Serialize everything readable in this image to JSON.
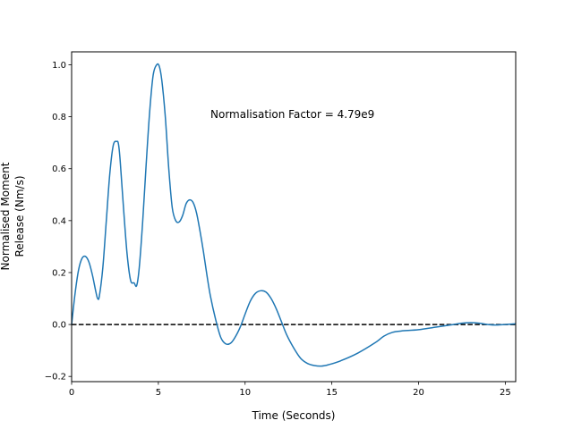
{
  "chart_data": {
    "type": "line",
    "xlabel": "Time (Seconds)",
    "ylabel_lines": [
      "Normalised Moment",
      "Release (Nm/s)"
    ],
    "annotation": "Normalisation Factor = 4.79e9",
    "xlim": [
      0,
      25.6
    ],
    "ylim": [
      -0.22,
      1.05
    ],
    "xticks": [
      0,
      5,
      10,
      15,
      20,
      25
    ],
    "yticks": [
      -0.2,
      0.0,
      0.2,
      0.4,
      0.6,
      0.8,
      1.0
    ],
    "xtick_labels": [
      "0",
      "5",
      "10",
      "15",
      "20",
      "25"
    ],
    "ytick_labels": [
      "−0.2",
      "0.0",
      "0.2",
      "0.4",
      "0.6",
      "0.8",
      "1.0"
    ],
    "grid": false,
    "reference_line": {
      "y": 0.0,
      "style": "dashed",
      "color": "#000000"
    },
    "series": [
      {
        "color": "#1f77b4",
        "x": [
          0,
          0.2,
          0.4,
          0.6,
          0.8,
          1.0,
          1.2,
          1.4,
          1.5,
          1.6,
          1.8,
          2.0,
          2.2,
          2.4,
          2.6,
          2.7,
          2.8,
          3.0,
          3.2,
          3.4,
          3.6,
          3.75,
          3.9,
          4.1,
          4.3,
          4.5,
          4.7,
          4.9,
          5.05,
          5.2,
          5.4,
          5.6,
          5.8,
          6.0,
          6.2,
          6.4,
          6.6,
          6.8,
          7.0,
          7.2,
          7.4,
          7.6,
          7.8,
          8.0,
          8.3,
          8.6,
          8.9,
          9.2,
          9.5,
          9.75,
          10.0,
          10.3,
          10.6,
          10.9,
          11.2,
          11.5,
          11.8,
          12.1,
          12.4,
          12.8,
          13.2,
          13.6,
          14.0,
          14.4,
          14.8,
          15.5,
          16.5,
          17.5,
          18.0,
          18.5,
          19.0,
          20.0,
          21.0,
          22.0,
          22.5,
          23.0,
          23.5,
          24.0,
          24.5,
          25.0,
          25.6
        ],
        "y": [
          0.0,
          0.12,
          0.21,
          0.255,
          0.262,
          0.24,
          0.19,
          0.125,
          0.1,
          0.11,
          0.22,
          0.4,
          0.58,
          0.69,
          0.705,
          0.695,
          0.63,
          0.44,
          0.27,
          0.17,
          0.16,
          0.15,
          0.22,
          0.4,
          0.62,
          0.82,
          0.96,
          1.0,
          0.995,
          0.94,
          0.8,
          0.6,
          0.45,
          0.4,
          0.395,
          0.42,
          0.465,
          0.48,
          0.47,
          0.43,
          0.36,
          0.28,
          0.19,
          0.11,
          0.02,
          -0.05,
          -0.075,
          -0.07,
          -0.04,
          -0.005,
          0.04,
          0.09,
          0.12,
          0.13,
          0.125,
          0.1,
          0.06,
          0.01,
          -0.04,
          -0.09,
          -0.13,
          -0.15,
          -0.158,
          -0.16,
          -0.155,
          -0.14,
          -0.11,
          -0.07,
          -0.045,
          -0.03,
          -0.025,
          -0.02,
          -0.01,
          0.0,
          0.005,
          0.007,
          0.005,
          0.0,
          -0.002,
          0.0,
          0.003
        ]
      }
    ]
  }
}
